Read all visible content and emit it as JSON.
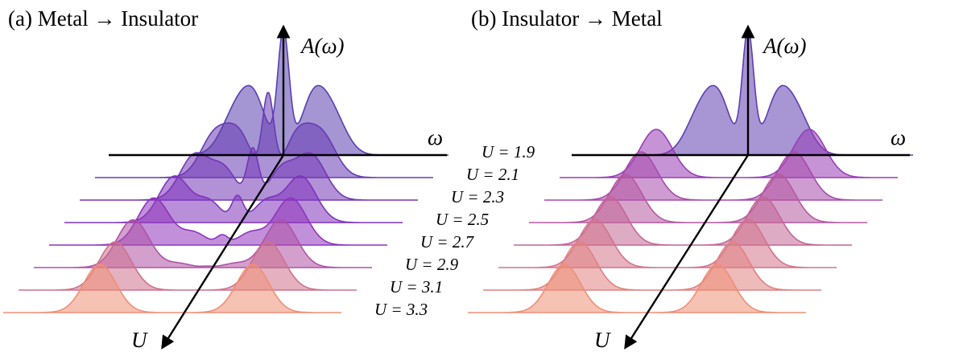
{
  "panels": [
    {
      "title": "(a) Metal → Insulator",
      "y_axis_label": "A(ω)",
      "x_axis_label": "ω",
      "depth_axis_label": "U",
      "slice_order": "metal-to-insulator"
    },
    {
      "title": "(b) Insulator → Metal",
      "y_axis_label": "A(ω)",
      "x_axis_label": "ω",
      "depth_axis_label": "U",
      "slice_order": "insulator-to-metal"
    }
  ],
  "slice_labels": [
    "U = 1.9",
    "U = 2.1",
    "U = 2.3",
    "U = 2.5",
    "U = 2.7",
    "U = 2.9",
    "U = 3.1",
    "U = 3.3"
  ],
  "U_values": [
    1.9,
    2.1,
    2.3,
    2.5,
    2.7,
    2.9,
    3.1,
    3.3
  ],
  "colors": {
    "metal": "#5a3fae",
    "mid": "#8a2fc0",
    "insulator": "#ee8f76",
    "axes": "#000000"
  }
}
